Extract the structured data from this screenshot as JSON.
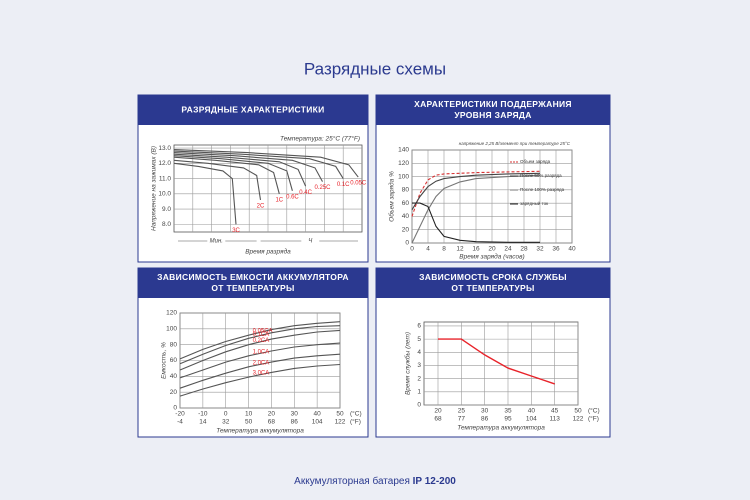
{
  "title": "Разрядные схемы",
  "footer": {
    "text": "Аккумуляторная батарея",
    "model": "IP 12-200"
  },
  "chart_data": [
    {
      "type": "line",
      "title": [
        "РАЗРЯДНЫЕ ХАРАКТЕРИСТИКИ"
      ],
      "ylabel": "Напряжение на зажимах (В)",
      "xlabel": "Время разряда",
      "annotation": "Температура: 25°C (77°F)",
      "xgroups": [
        "Мин.",
        "Ч"
      ],
      "xlim": [
        0,
        10
      ],
      "ylim": [
        7.5,
        13.2
      ],
      "yticks": [
        {
          "value": 8,
          "label": "8.0"
        },
        {
          "value": 9,
          "label": "9.0"
        },
        {
          "value": 10,
          "label": "10.0"
        },
        {
          "value": 11,
          "label": "11.0"
        },
        {
          "value": 12,
          "label": "12.0"
        },
        {
          "value": 13,
          "label": "13.0"
        }
      ],
      "labels": "inline",
      "grid": true,
      "series": [
        {
          "name": "3C",
          "color": "#555555",
          "x": [
            0,
            1.3,
            2.6,
            3.1,
            3.3
          ],
          "values": [
            12.0,
            11.8,
            11.5,
            11.0,
            8.0
          ]
        },
        {
          "name": "2C",
          "color": "#555555",
          "x": [
            0,
            1.8,
            3.7,
            4.4,
            4.6
          ],
          "values": [
            12.2,
            12.0,
            11.7,
            11.2,
            9.6
          ]
        },
        {
          "name": "1C",
          "color": "#555555",
          "x": [
            0,
            2.2,
            4.5,
            5.3,
            5.6
          ],
          "values": [
            12.4,
            12.2,
            11.9,
            11.4,
            10.0
          ]
        },
        {
          "name": "0.6C",
          "color": "#555555",
          "x": [
            0,
            2.5,
            5.0,
            6.0,
            6.3
          ],
          "values": [
            12.5,
            12.3,
            12.0,
            11.5,
            10.2
          ]
        },
        {
          "name": "0.4C",
          "color": "#555555",
          "x": [
            0,
            2.8,
            5.6,
            6.6,
            7.0
          ],
          "values": [
            12.6,
            12.4,
            12.1,
            11.6,
            10.5
          ]
        },
        {
          "name": "0.25C",
          "color": "#555555",
          "x": [
            0,
            3.2,
            6.3,
            7.5,
            7.9
          ],
          "values": [
            12.7,
            12.5,
            12.2,
            11.7,
            10.8
          ]
        },
        {
          "name": "0.1C",
          "color": "#555555",
          "x": [
            0,
            3.6,
            7.2,
            8.6,
            9.0
          ],
          "values": [
            12.8,
            12.6,
            12.3,
            11.8,
            11.0
          ]
        },
        {
          "name": "0.05C",
          "color": "#555555",
          "x": [
            0,
            3.9,
            7.8,
            9.3,
            9.8
          ],
          "values": [
            12.9,
            12.7,
            12.4,
            11.9,
            11.1
          ]
        }
      ]
    },
    {
      "type": "line",
      "title": [
        "ХАРАКТЕРИСТИКИ ПОДДЕРЖАНИЯ",
        "УРОВНЯ ЗАРЯДА"
      ],
      "ylabel": "Объем заряда %",
      "xlabel": "Время заряда (часов)",
      "annotation": "напряжение 2,25 В/элемент при температуре 25°C",
      "xlim": [
        0,
        40
      ],
      "ylim": [
        0,
        140
      ],
      "xticks": [
        0,
        4,
        8,
        12,
        16,
        20,
        24,
        28,
        32,
        36,
        40
      ],
      "yticks": [
        0,
        20,
        40,
        60,
        80,
        100,
        120,
        140
      ],
      "legend": "upper-right",
      "grid": true,
      "series": [
        {
          "name": "Объем заряда",
          "color": "#d63031",
          "dash": true,
          "x": [
            0,
            2,
            4,
            6,
            8,
            12,
            16,
            24,
            32
          ],
          "values": [
            40,
            75,
            95,
            102,
            104,
            105,
            106,
            107,
            108
          ]
        },
        {
          "name": "После 50% разряда",
          "color": "#444444",
          "x": [
            0,
            2,
            4,
            6,
            8,
            12,
            16,
            24,
            32
          ],
          "values": [
            50,
            70,
            85,
            93,
            97,
            100,
            102,
            104,
            105
          ]
        },
        {
          "name": "После 100% разряда",
          "color": "#777777",
          "x": [
            0,
            2,
            4,
            6,
            8,
            12,
            16,
            24,
            32
          ],
          "values": [
            0,
            25,
            50,
            70,
            82,
            92,
            97,
            100,
            102
          ]
        },
        {
          "name": "зарядный ток",
          "color": "#222222",
          "x": [
            0,
            2,
            4,
            6,
            8,
            12,
            16,
            24,
            32
          ],
          "values": [
            60,
            60,
            55,
            25,
            10,
            4,
            2,
            1,
            1
          ]
        }
      ]
    },
    {
      "type": "line",
      "title": [
        "ЗАВИСИМОСТЬ ЕМКОСТИ АККУМУЛЯТОРА",
        "ОТ ТЕМПЕРАТУРЫ"
      ],
      "ylabel": "Емкость, %",
      "xlabel": "Температура аккумулятора",
      "xunit": "(°C)",
      "x2unit": "(°F)",
      "xlim": [
        -20,
        50
      ],
      "ylim": [
        0,
        120
      ],
      "xticks": [
        -20,
        -10,
        0,
        10,
        20,
        30,
        40,
        50
      ],
      "x2ticks": [
        -4,
        14,
        32,
        50,
        68,
        86,
        104,
        122
      ],
      "yticks": [
        0,
        20,
        40,
        60,
        80,
        100,
        120
      ],
      "labels": "inline",
      "grid": true,
      "x": [
        -20,
        -10,
        0,
        10,
        20,
        30,
        40,
        50
      ],
      "series": [
        {
          "name": "0.05CA",
          "color": "#555555",
          "values": [
            62,
            74,
            84,
            92,
            99,
            104,
            107,
            109
          ]
        },
        {
          "name": "0.1CA",
          "color": "#555555",
          "values": [
            56,
            68,
            79,
            88,
            95,
            100,
            103,
            104
          ]
        },
        {
          "name": "0.2CA",
          "color": "#555555",
          "values": [
            48,
            60,
            71,
            80,
            87,
            92,
            96,
            98
          ]
        },
        {
          "name": "1.0CA",
          "color": "#555555",
          "values": [
            38,
            48,
            58,
            66,
            72,
            77,
            80,
            82
          ]
        },
        {
          "name": "2.0CA",
          "color": "#555555",
          "values": [
            25,
            35,
            44,
            52,
            58,
            63,
            66,
            68
          ]
        },
        {
          "name": "3.0CA",
          "color": "#555555",
          "values": [
            15,
            24,
            32,
            39,
            45,
            50,
            53,
            55
          ]
        }
      ]
    },
    {
      "type": "line",
      "title": [
        "ЗАВИСИМОСТЬ СРОКА СЛУЖБЫ",
        "ОТ ТЕМПЕРАТУРЫ"
      ],
      "ylabel": "Время службы (лет)",
      "xlabel": "Температура аккумулятора",
      "xunit": "(°C)",
      "x2unit": "(°F)",
      "xlim": [
        17,
        50
      ],
      "ylim": [
        0,
        6.3
      ],
      "xticks": [
        20,
        25,
        30,
        35,
        40,
        45,
        50
      ],
      "x2ticks": [
        68,
        77,
        86,
        95,
        104,
        113,
        122
      ],
      "yticks": [
        0,
        1,
        2,
        3,
        4,
        5,
        6
      ],
      "grid": true,
      "x": [
        20,
        25,
        30,
        35,
        40,
        45
      ],
      "series": [
        {
          "color": "#e8232a",
          "values": [
            5,
            5,
            3.8,
            2.8,
            2.2,
            1.6
          ]
        }
      ]
    }
  ]
}
